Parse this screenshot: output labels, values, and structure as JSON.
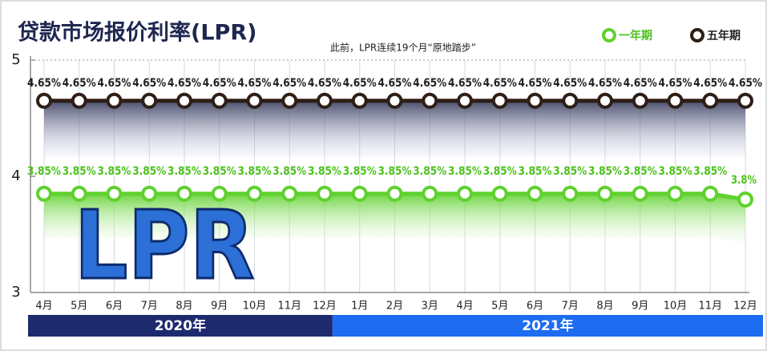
{
  "chart_data": {
    "type": "line",
    "title": "贷款市场报价利率(LPR)",
    "subtitle": "此前，LPR连续19个月“原地踏步”",
    "image_text": "LPR",
    "categories": [
      "4月",
      "5月",
      "6月",
      "7月",
      "8月",
      "9月",
      "10月",
      "11月",
      "12月",
      "1月",
      "2月",
      "3月",
      "4月",
      "5月",
      "6月",
      "7月",
      "8月",
      "9月",
      "10月",
      "11月",
      "12月"
    ],
    "x_groups": [
      "2020年",
      "2021年"
    ],
    "x_group_colors": [
      "#1e2a6e",
      "#1d6cf2"
    ],
    "series": [
      {
        "name": "一年期",
        "color": "#5fd12e",
        "values": [
          3.85,
          3.85,
          3.85,
          3.85,
          3.85,
          3.85,
          3.85,
          3.85,
          3.85,
          3.85,
          3.85,
          3.85,
          3.85,
          3.85,
          3.85,
          3.85,
          3.85,
          3.85,
          3.85,
          3.85,
          3.8
        ],
        "value_labels": [
          "3.85%",
          "3.85%",
          "3.85%",
          "3.85%",
          "3.85%",
          "3.85%",
          "3.85%",
          "3.85%",
          "3.85%",
          "3.85%",
          "3.85%",
          "3.85%",
          "3.85%",
          "3.85%",
          "3.85%",
          "3.85%",
          "3.85%",
          "3.85%",
          "3.85%",
          "3.85%",
          "3.8%"
        ]
      },
      {
        "name": "五年期",
        "color": "#2e1f16",
        "values": [
          4.65,
          4.65,
          4.65,
          4.65,
          4.65,
          4.65,
          4.65,
          4.65,
          4.65,
          4.65,
          4.65,
          4.65,
          4.65,
          4.65,
          4.65,
          4.65,
          4.65,
          4.65,
          4.65,
          4.65,
          4.65
        ],
        "value_labels": [
          "4.65%",
          "4.65%",
          "4.65%",
          "4.65%",
          "4.65%",
          "4.65%",
          "4.65%",
          "4.65%",
          "4.65%",
          "4.65%",
          "4.65%",
          "4.65%",
          "4.65%",
          "4.65%",
          "4.65%",
          "4.65%",
          "4.65%",
          "4.65%",
          "4.65%",
          "4.65%",
          "4.65%"
        ]
      }
    ],
    "ylim": [
      3,
      5
    ],
    "yticks": [
      3,
      4,
      5
    ],
    "grid": true
  }
}
